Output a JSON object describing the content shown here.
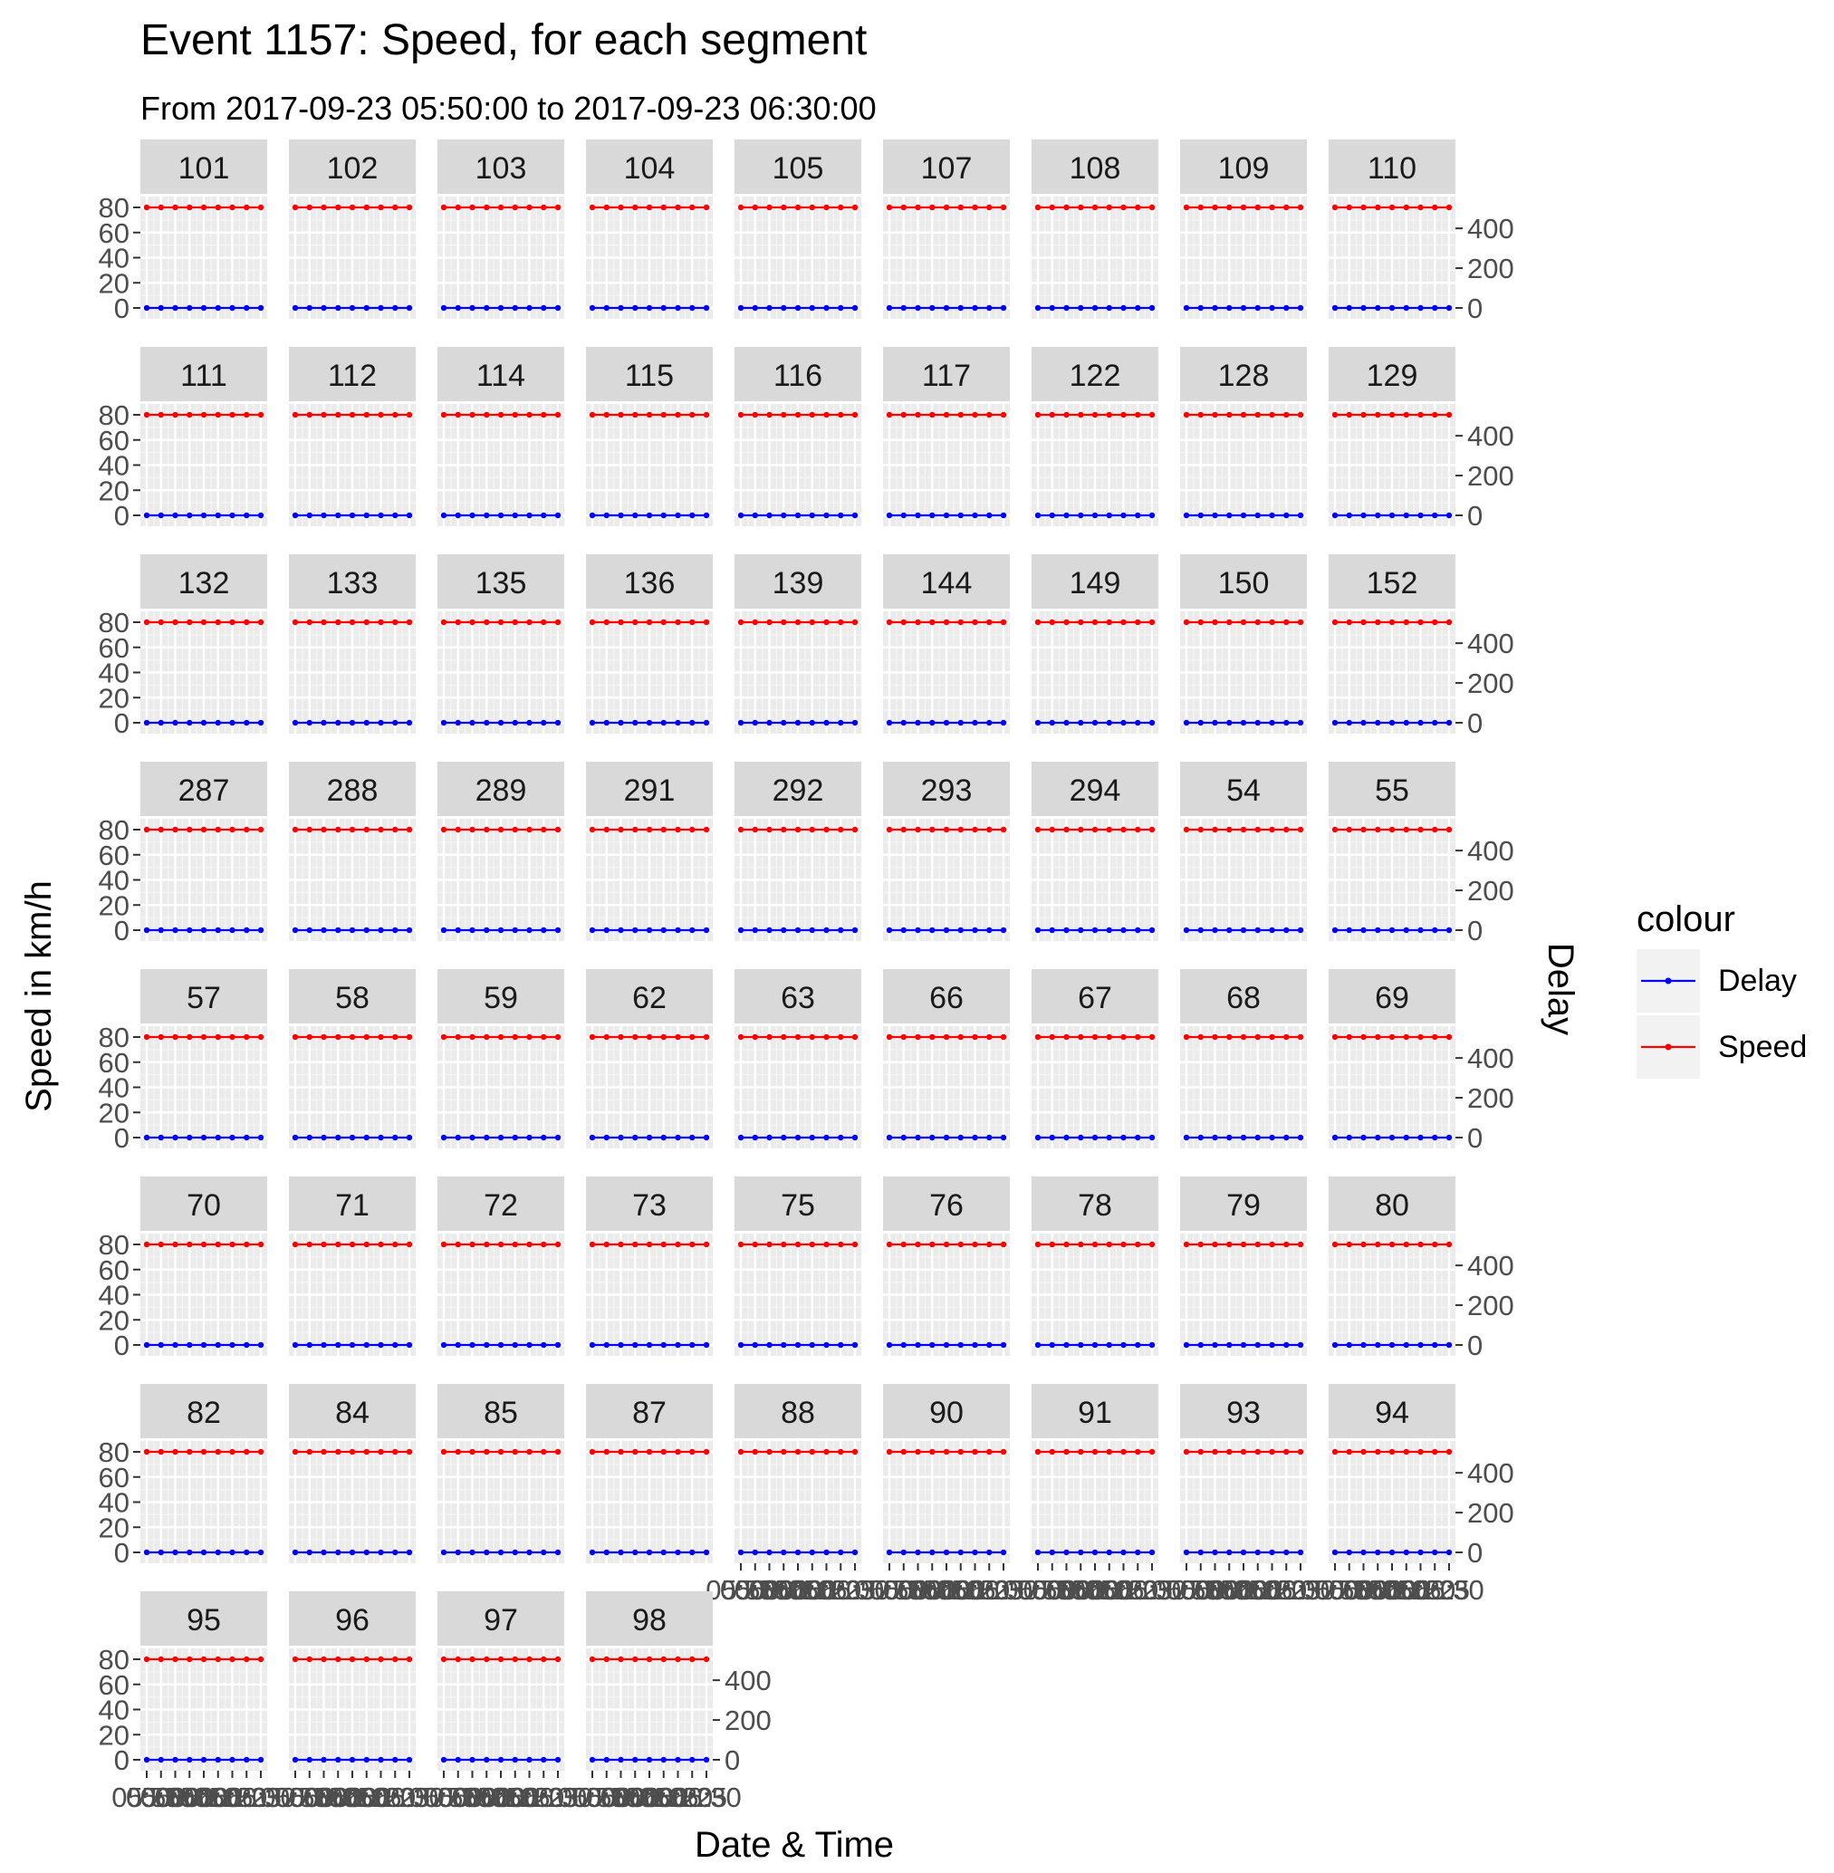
{
  "chart_data": {
    "type": "line",
    "title": "Event 1157: Speed, for each segment",
    "subtitle": "From 2017-09-23 05:50:00 to 2017-09-23 06:30:00",
    "xlabel": "Date & Time",
    "ylabel": "Speed in km/h",
    "y2label": "Delay",
    "x": [
      "05:50",
      "05:55",
      "06:00",
      "06:05",
      "06:10",
      "06:15",
      "06:20",
      "06:25",
      "06:30"
    ],
    "x_tick_labels": [
      "05:50",
      "05:55",
      "06:00",
      "06:05",
      "06:10",
      "06:15",
      "06:20",
      "06:25",
      "06:30"
    ],
    "ylim": [
      0,
      80
    ],
    "y_ticks": [
      0,
      20,
      40,
      60,
      80
    ],
    "y2lim": [
      0,
      560
    ],
    "y2_ticks": [
      0,
      200,
      400
    ],
    "grid": true,
    "legend": {
      "title": "colour",
      "placement": "right",
      "entries": [
        {
          "name": "Delay",
          "color": "#0000ff"
        },
        {
          "name": "Speed",
          "color": "#ff0000"
        }
      ]
    },
    "panels": [
      "101",
      "102",
      "103",
      "104",
      "105",
      "107",
      "108",
      "109",
      "110",
      "111",
      "112",
      "114",
      "115",
      "116",
      "117",
      "122",
      "128",
      "129",
      "132",
      "133",
      "135",
      "136",
      "139",
      "144",
      "149",
      "150",
      "152",
      "287",
      "288",
      "289",
      "291",
      "292",
      "293",
      "294",
      "54",
      "55",
      "57",
      "58",
      "59",
      "62",
      "63",
      "66",
      "67",
      "68",
      "69",
      "70",
      "71",
      "72",
      "73",
      "75",
      "76",
      "78",
      "79",
      "80",
      "82",
      "84",
      "85",
      "87",
      "88",
      "90",
      "91",
      "93",
      "94",
      "95",
      "96",
      "97",
      "98"
    ],
    "series": [
      {
        "name": "Speed",
        "color": "#ff0000",
        "axis": "left",
        "values": [
          80,
          80,
          80,
          80,
          80,
          80,
          80,
          80,
          80
        ]
      },
      {
        "name": "Delay",
        "color": "#0000ff",
        "axis": "right",
        "values": [
          0,
          0,
          0,
          0,
          0,
          0,
          0,
          0,
          0
        ]
      }
    ]
  }
}
